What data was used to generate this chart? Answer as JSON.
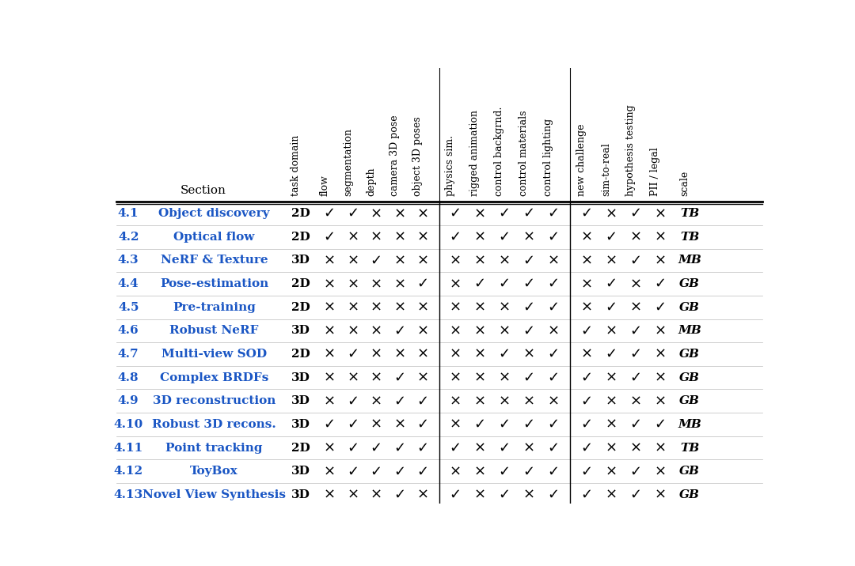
{
  "section_nums": [
    "4.1",
    "4.2",
    "4.3",
    "4.4",
    "4.5",
    "4.6",
    "4.7",
    "4.8",
    "4.9",
    "4.10",
    "4.11",
    "4.12",
    "4.13"
  ],
  "section_names": [
    "Object discovery",
    "Optical flow",
    "NeRF & Texture",
    "Pose-estimation",
    "Pre-training",
    "Robust NeRF",
    "Multi-view SOD",
    "Complex BRDFs",
    "3D reconstruction",
    "Robust 3D recons.",
    "Point tracking",
    "ToyBox",
    "Novel View Synthesis"
  ],
  "task_domain": [
    "2D",
    "2D",
    "3D",
    "2D",
    "2D",
    "3D",
    "2D",
    "3D",
    "3D",
    "3D",
    "2D",
    "3D",
    "3D"
  ],
  "col_headers": [
    "task\ndomain",
    "flow",
    "segmentation",
    "depth",
    "camera 3D pose",
    "object 3D poses",
    "physics sim.",
    "rigged animation",
    "control backgrnd.",
    "control materials",
    "control lighting",
    "new challenge",
    "sim-to-real",
    "hypothesis testing",
    "PII / legal",
    "scale"
  ],
  "data": [
    [
      1,
      1,
      0,
      0,
      0,
      1,
      0,
      1,
      1,
      1,
      1,
      0,
      1,
      0,
      "TB"
    ],
    [
      1,
      0,
      0,
      0,
      0,
      1,
      0,
      1,
      0,
      1,
      0,
      1,
      0,
      0,
      "TB"
    ],
    [
      0,
      0,
      1,
      0,
      0,
      0,
      0,
      0,
      1,
      0,
      0,
      0,
      1,
      0,
      "MB"
    ],
    [
      0,
      0,
      0,
      0,
      1,
      0,
      1,
      1,
      1,
      1,
      0,
      1,
      0,
      1,
      "GB"
    ],
    [
      0,
      0,
      0,
      0,
      0,
      0,
      0,
      0,
      1,
      1,
      0,
      1,
      0,
      1,
      "GB"
    ],
    [
      0,
      0,
      0,
      1,
      0,
      0,
      0,
      0,
      1,
      0,
      1,
      0,
      1,
      0,
      "MB"
    ],
    [
      0,
      1,
      0,
      0,
      0,
      0,
      0,
      1,
      0,
      1,
      0,
      1,
      1,
      0,
      "GB"
    ],
    [
      0,
      0,
      0,
      1,
      0,
      0,
      0,
      0,
      1,
      1,
      1,
      0,
      1,
      0,
      "GB"
    ],
    [
      0,
      1,
      0,
      1,
      1,
      0,
      0,
      0,
      0,
      0,
      1,
      0,
      0,
      0,
      "GB"
    ],
    [
      1,
      1,
      0,
      0,
      1,
      0,
      1,
      1,
      1,
      1,
      1,
      0,
      1,
      1,
      "MB"
    ],
    [
      0,
      1,
      1,
      1,
      1,
      1,
      0,
      1,
      0,
      1,
      1,
      0,
      0,
      0,
      "TB"
    ],
    [
      0,
      1,
      1,
      1,
      1,
      0,
      0,
      1,
      1,
      1,
      1,
      0,
      1,
      0,
      "GB"
    ],
    [
      0,
      0,
      0,
      1,
      0,
      1,
      0,
      1,
      0,
      1,
      1,
      0,
      1,
      0,
      "GB"
    ]
  ],
  "blue_color": "#1a56c4",
  "check_symbol": "✓",
  "cross_symbol": "×",
  "bg_color": "#ffffff"
}
